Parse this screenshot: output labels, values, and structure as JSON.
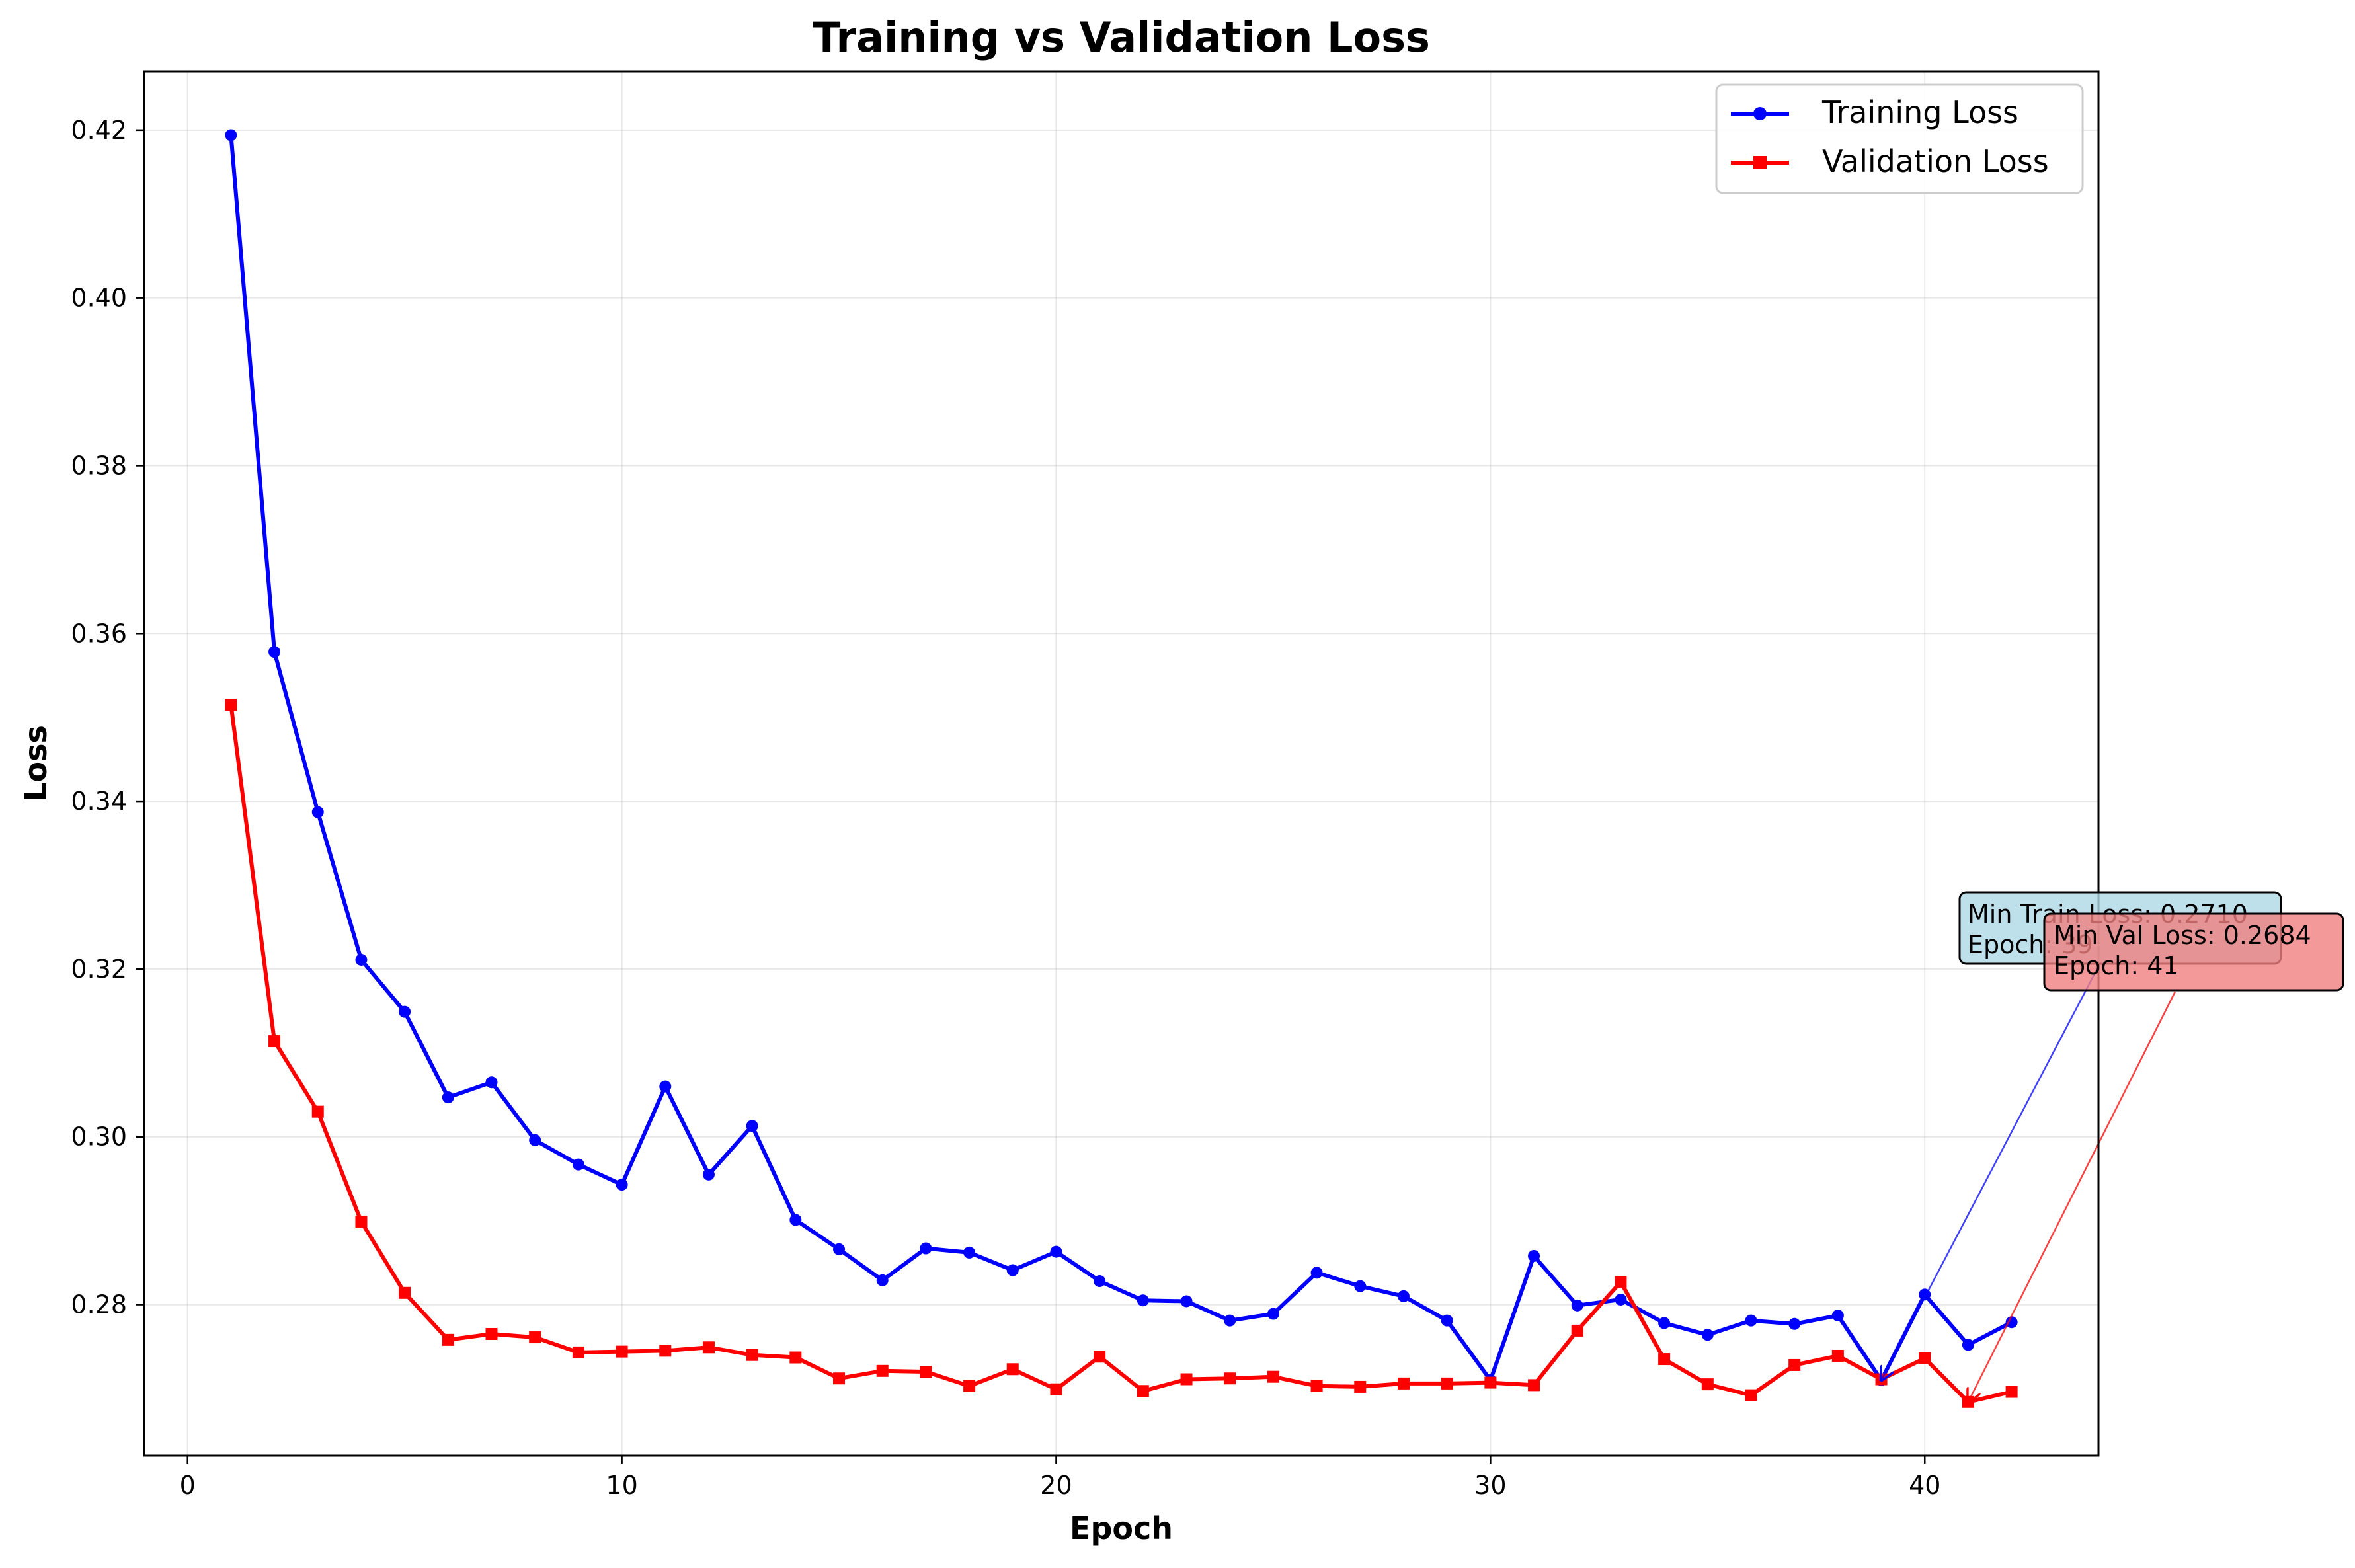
{
  "chart_data": {
    "type": "line",
    "title": "Training vs Validation Loss",
    "xlabel": "Epoch",
    "ylabel": "Loss",
    "xlim": [
      -1,
      44
    ],
    "ylim": [
      0.262,
      0.427
    ],
    "xticks": [
      0,
      10,
      20,
      30,
      40
    ],
    "yticks": [
      0.28,
      0.3,
      0.32,
      0.34,
      0.36,
      0.38,
      0.4,
      0.42
    ],
    "grid": true,
    "legend_position": "upper right",
    "x": [
      1,
      2,
      3,
      4,
      5,
      6,
      7,
      8,
      9,
      10,
      11,
      12,
      13,
      14,
      15,
      16,
      17,
      18,
      19,
      20,
      21,
      22,
      23,
      24,
      25,
      26,
      27,
      28,
      29,
      30,
      31,
      32,
      33,
      34,
      35,
      36,
      37,
      38,
      39,
      40,
      41,
      42
    ],
    "series": [
      {
        "name": "Training Loss",
        "color": "#0000ff",
        "marker": "circle",
        "values": [
          0.4194,
          0.3578,
          0.3387,
          0.3211,
          0.3149,
          0.3047,
          0.3065,
          0.2996,
          0.2967,
          0.2943,
          0.306,
          0.2955,
          0.3013,
          0.2901,
          0.2866,
          0.2829,
          0.2867,
          0.2862,
          0.2841,
          0.2863,
          0.2828,
          0.2805,
          0.2804,
          0.2781,
          0.2789,
          0.2838,
          0.2822,
          0.281,
          0.2781,
          0.271,
          0.2858,
          0.2799,
          0.2806,
          0.2778,
          0.2764,
          0.2781,
          0.2777,
          0.2787,
          0.271,
          0.2812,
          0.2752,
          0.2779
        ]
      },
      {
        "name": "Validation Loss",
        "color": "#ff0000",
        "marker": "square",
        "values": [
          0.3515,
          0.3114,
          0.303,
          0.2899,
          0.2814,
          0.2758,
          0.2765,
          0.2761,
          0.2743,
          0.2744,
          0.2745,
          0.2749,
          0.274,
          0.2737,
          0.2712,
          0.2721,
          0.272,
          0.2703,
          0.2723,
          0.2699,
          0.2738,
          0.2697,
          0.2711,
          0.2712,
          0.2714,
          0.2703,
          0.2702,
          0.2706,
          0.2706,
          0.2707,
          0.2704,
          0.2769,
          0.2827,
          0.2735,
          0.2705,
          0.2692,
          0.2728,
          0.2739,
          0.2711,
          0.2736,
          0.2684,
          0.2696
        ]
      }
    ],
    "annotations": [
      {
        "line1": "Min Train Loss: 0.2710",
        "line2": "Epoch: 39",
        "target_epoch": 39,
        "target_value": 0.271,
        "box_color": "#add8e6",
        "arrow_color": "#0000ff"
      },
      {
        "line1": "Min Val Loss: 0.2684",
        "line2": "Epoch: 41",
        "target_epoch": 41,
        "target_value": 0.2684,
        "box_color": "#f08080",
        "arrow_color": "#ff0000"
      }
    ]
  }
}
